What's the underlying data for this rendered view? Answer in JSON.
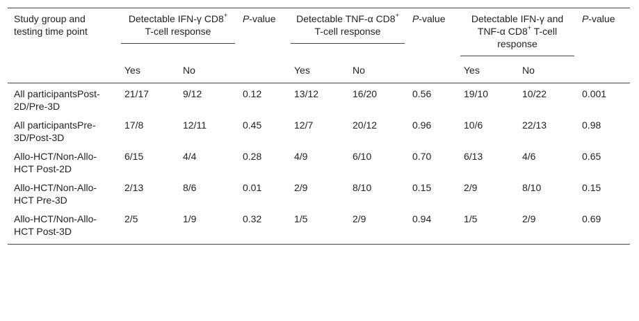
{
  "table": {
    "header": {
      "study_group": "Study group and testing time point",
      "ifn_group": {
        "main": "Detectable IFN-γ CD8",
        "sup": "+",
        "tail": " T-cell response"
      },
      "tnf_group": {
        "main": "Detectable TNF-α CD8",
        "sup": "+",
        "tail": " T-cell response"
      },
      "both_group": {
        "main": "Detectable IFN-γ and TNF-α CD8",
        "sup": "+",
        "tail": " T-cell response"
      },
      "p_italic": "P",
      "p_suffix_short": "-value",
      "p_suffix_last": "-value",
      "yes": "Yes",
      "no": "No"
    },
    "rows": [
      {
        "group": "All participantsPost-2D/Pre-3D",
        "ifn_yes": "21/17",
        "ifn_no": "9/12",
        "ifn_p": "0.12",
        "tnf_yes": "13/12",
        "tnf_no": "16/20",
        "tnf_p": "0.56",
        "both_yes": "19/10",
        "both_no": "10/22",
        "both_p": "0.001"
      },
      {
        "group": "All participantsPre-3D/Post-3D",
        "ifn_yes": "17/8",
        "ifn_no": "12/11",
        "ifn_p": "0.45",
        "tnf_yes": "12/7",
        "tnf_no": "20/12",
        "tnf_p": "0.96",
        "both_yes": "10/6",
        "both_no": "22/13",
        "both_p": "0.98"
      },
      {
        "group": "Allo-HCT/Non-Allo-HCT Post-2D",
        "ifn_yes": "6/15",
        "ifn_no": "4/4",
        "ifn_p": "0.28",
        "tnf_yes": "4/9",
        "tnf_no": "6/10",
        "tnf_p": "0.70",
        "both_yes": "6/13",
        "both_no": "4/6",
        "both_p": "0.65"
      },
      {
        "group": "Allo-HCT/Non-Allo-HCT Pre-3D",
        "ifn_yes": "2/13",
        "ifn_no": "8/6",
        "ifn_p": "0.01",
        "tnf_yes": "2/9",
        "tnf_no": "8/10",
        "tnf_p": "0.15",
        "both_yes": "2/9",
        "both_no": "8/10",
        "both_p": "0.15"
      },
      {
        "group": "Allo-HCT/Non-Allo-HCT Post-3D",
        "ifn_yes": "2/5",
        "ifn_no": "1/9",
        "ifn_p": "0.32",
        "tnf_yes": "1/5",
        "tnf_no": "2/9",
        "tnf_p": "0.94",
        "both_yes": "1/5",
        "both_no": "2/9",
        "both_p": "0.69"
      }
    ]
  }
}
